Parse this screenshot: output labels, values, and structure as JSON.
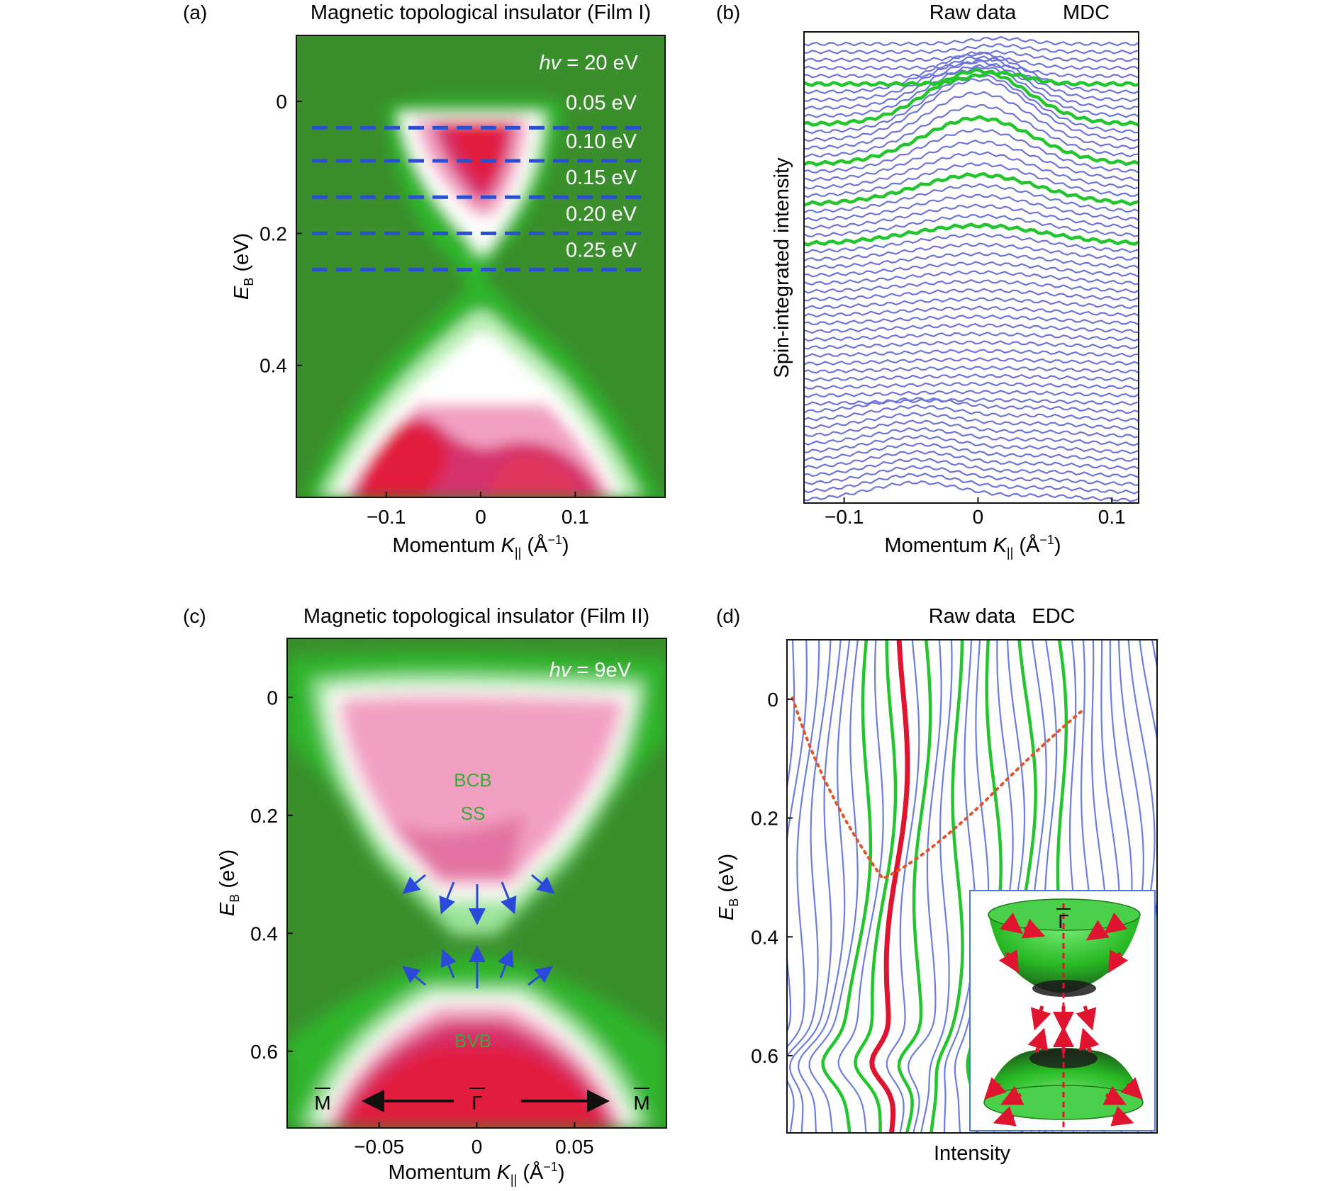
{
  "colors": {
    "green_dark": "#3a8f2c",
    "green": "#2fb52a",
    "green_light": "#9be59a",
    "white": "#ffffff",
    "pink": "#f2a0c2",
    "magenta": "#d6306e",
    "red": "#e21b3c",
    "dash_blue": "#2b4fd1",
    "mdc_blue": "#6f74d9",
    "mdc_green": "#22c52d",
    "edc_blue": "#6b7fe0",
    "edc_green": "#22c52d",
    "edc_red": "#e0142f",
    "dotted_orange": "#e2552a",
    "arrow_blue": "#2a49d8"
  },
  "chart_data": [
    {
      "panel": "(a)",
      "type": "heatmap",
      "title": "Magnetic topological insulator (Film I)",
      "annotation": "hv = 20 eV",
      "annotation_italic": "hv",
      "annotation_rest": " = 20 eV",
      "xlabel_main": "Momentum ",
      "xlabel_var": "K",
      "xlabel_sub": "||",
      "xlabel_unit": " (Å",
      "xlabel_sup": "−1",
      "xlabel_close": ")",
      "ylabel_var": "E",
      "ylabel_sub": "B",
      "ylabel_unit": " (eV)",
      "xlim": [
        -0.195,
        0.195
      ],
      "ylim": [
        -0.1,
        0.6
      ],
      "xticks": [
        -0.1,
        0,
        0.1
      ],
      "xtick_labels": [
        "−0.1",
        "0",
        "0.1"
      ],
      "yticks": [
        0,
        0.2,
        0.4
      ],
      "ytick_labels": [
        "0",
        "0.2",
        "0.4"
      ],
      "cut_energies": [
        0.04,
        0.09,
        0.145,
        0.2,
        0.255
      ],
      "cut_labels": [
        "0.05 eV",
        "0.10 eV",
        "0.15 eV",
        "0.20 eV",
        "0.25 eV"
      ]
    },
    {
      "panel": "(b)",
      "type": "line",
      "title": "Raw data",
      "title2": "MDC",
      "xlabel_main": "Momentum ",
      "xlabel_var": "K",
      "xlabel_sub": "||",
      "xlabel_unit": " (Å",
      "xlabel_sup": "−1",
      "xlabel_close": ")",
      "ylabel": "Spin-integrated intensity",
      "xlim": [
        -0.13,
        0.12
      ],
      "xticks": [
        -0.1,
        0,
        0.1
      ],
      "xtick_labels": [
        "−0.1",
        "0",
        "0.1"
      ],
      "curve_count": 58,
      "highlighted_curves": [
        5,
        10,
        15,
        20,
        25
      ]
    },
    {
      "panel": "(c)",
      "type": "heatmap",
      "title": "Magnetic topological insulator (Film II)",
      "annotation_italic": "hv",
      "annotation_rest": " = 9eV",
      "xlabel_main": "Momentum ",
      "xlabel_var": "K",
      "xlabel_sub": "||",
      "xlabel_unit": " (Å",
      "xlabel_sup": "−1",
      "xlabel_close": ")",
      "ylabel_var": "E",
      "ylabel_sub": "B",
      "ylabel_unit": " (eV)",
      "xlim": [
        -0.097,
        0.097
      ],
      "ylim": [
        -0.1,
        0.73
      ],
      "xticks": [
        -0.05,
        0,
        0.05
      ],
      "xtick_labels": [
        "−0.05",
        "0",
        "0.05"
      ],
      "yticks": [
        0,
        0.2,
        0.4,
        0.6
      ],
      "ytick_labels": [
        "0",
        "0.2",
        "0.4",
        "0.6"
      ],
      "labels": {
        "bcb": "BCB",
        "ss": "SS",
        "bvb": "BVB",
        "m_left": "M",
        "gamma": "Γ",
        "m_right": "M"
      }
    },
    {
      "panel": "(d)",
      "type": "line",
      "title": "Raw data",
      "title2": "EDC",
      "xlabel": "Intensity",
      "ylabel_var": "E",
      "ylabel_sub": "B",
      "ylabel_unit": " (eV)",
      "ylim": [
        -0.1,
        0.73
      ],
      "yticks": [
        0,
        0.2,
        0.4,
        0.6
      ],
      "ytick_labels": [
        "0",
        "0.2",
        "0.4",
        "0.6"
      ],
      "curve_count": 34,
      "highlighted_curves": [
        7,
        9,
        12,
        15,
        18,
        21,
        24
      ],
      "red_curve": 10,
      "inset_label": "Γ"
    }
  ]
}
